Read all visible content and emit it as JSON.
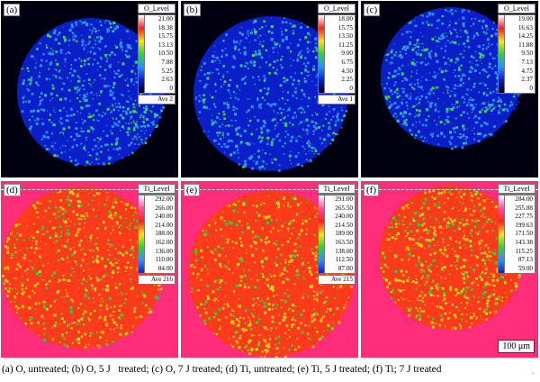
{
  "panels": [
    {
      "id": "a",
      "label": "(a)",
      "element": "O",
      "legend_title": "O_Level",
      "values": [
        "21.00",
        "18.38",
        "15.75",
        "13.13",
        "10.50",
        "7.88",
        "5.25",
        "2.63",
        "0"
      ],
      "ave": "Ave 2",
      "scheme": "blue",
      "bg": "#000010",
      "circle": [
        100,
        101,
        82
      ]
    },
    {
      "id": "b",
      "label": "(b)",
      "element": "O",
      "legend_title": "O_Level",
      "values": [
        "18.00",
        "15.75",
        "13.50",
        "11.25",
        "9.00",
        "6.75",
        "4.50",
        "2.25",
        "0"
      ],
      "ave": "Ave 1",
      "scheme": "blue",
      "bg": "#000010",
      "circle": [
        100,
        103,
        86
      ]
    },
    {
      "id": "c",
      "label": "(c)",
      "element": "O",
      "legend_title": "O_Level",
      "values": [
        "19.00",
        "16.63",
        "14.25",
        "11.88",
        "9.50",
        "7.13",
        "4.75",
        "2.37",
        "0"
      ],
      "ave": "",
      "scheme": "blue",
      "bg": "#000010",
      "circle": [
        100,
        85,
        78
      ]
    },
    {
      "id": "d",
      "label": "(d)",
      "element": "Ti",
      "legend_title": "Ti_Level",
      "values": [
        "292.00",
        "266.00",
        "240.00",
        "214.00",
        "188.00",
        "162.00",
        "136.00",
        "110.00",
        "84.00"
      ],
      "ave": "Ave 216",
      "scheme": "red",
      "bg": "#ff2d7a",
      "circle": [
        90,
        96,
        90
      ]
    },
    {
      "id": "e",
      "label": "(e)",
      "element": "Ti",
      "legend_title": "Ti_Level",
      "values": [
        "291.00",
        "265.50",
        "240.00",
        "214.50",
        "189.00",
        "163.50",
        "138.00",
        "112.50",
        "87.00"
      ],
      "ave": "Ave 215",
      "scheme": "red",
      "bg": "#ff2d7a",
      "circle": [
        100,
        103,
        92
      ]
    },
    {
      "id": "f",
      "label": "(f)",
      "element": "Ti",
      "legend_title": "Ti_Level",
      "values": [
        "284.00",
        "255.88",
        "227.75",
        "199.63",
        "171.50",
        "143.38",
        "115.25",
        "87.13",
        "59.00"
      ],
      "ave": "",
      "scheme": "red",
      "bg": "#ff2d7a",
      "circle": [
        100,
        85,
        80
      ]
    }
  ],
  "scale_bar": "100 μm",
  "caption": "(a) O, untreated; (b) O, 5 J   treated; (c) O, 7 J treated; (d) Ti, untreated; (e) Ti, 5 J treated; (f) Ti; 7 J treated",
  "colors": {
    "o_background": "#000010",
    "o_low": "#0a1fc8",
    "o_mid": "#2f8fff",
    "o_high": "#3ecf5a",
    "ti_background": "#ff2d7a",
    "ti_low": "#ff3b1c",
    "ti_mid": "#ffd21a",
    "ti_high": "#2fd23a"
  },
  "icons": {
    "legend": "color-bar-icon"
  }
}
